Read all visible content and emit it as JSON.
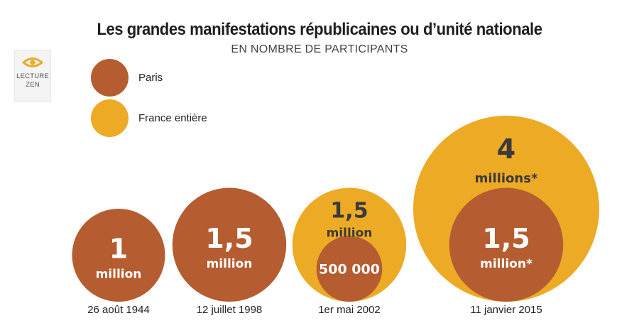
{
  "colors": {
    "paris": "#b55c31",
    "france": "#ecaa25",
    "label_on_color": "#ffffff",
    "label_dark": "#3a3a3a"
  },
  "zen_button": {
    "line1": "LECTURE",
    "line2": "ZEN",
    "icon": "eye-icon"
  },
  "chart_data": {
    "type": "bubble",
    "title": "Les grandes manifestations républicaines ou d’unité nationale",
    "subtitle": "EN NOMBRE DE PARTICIPANTS",
    "legend": [
      {
        "name": "Paris",
        "color": "#b55c31"
      },
      {
        "name": "France entière",
        "color": "#ecaa25"
      }
    ],
    "events": [
      {
        "date": "26 août 1944",
        "paris": 1000000,
        "france": null,
        "paris_label_big": "1",
        "paris_label_small": "million"
      },
      {
        "date": "12 juillet 1998",
        "paris": 1500000,
        "france": null,
        "paris_label_big": "1,5",
        "paris_label_small": "million"
      },
      {
        "date": "1er mai 2002",
        "paris": 500000,
        "france": 1500000,
        "paris_label_big": "500 000",
        "france_label_big": "1,5",
        "france_label_small": "million"
      },
      {
        "date": "11 janvier 2015",
        "paris": 1500000,
        "france": 4000000,
        "paris_label_big": "1,5",
        "paris_label_small": "million*",
        "france_label_big": "4",
        "france_label_small": "millions*"
      }
    ]
  }
}
